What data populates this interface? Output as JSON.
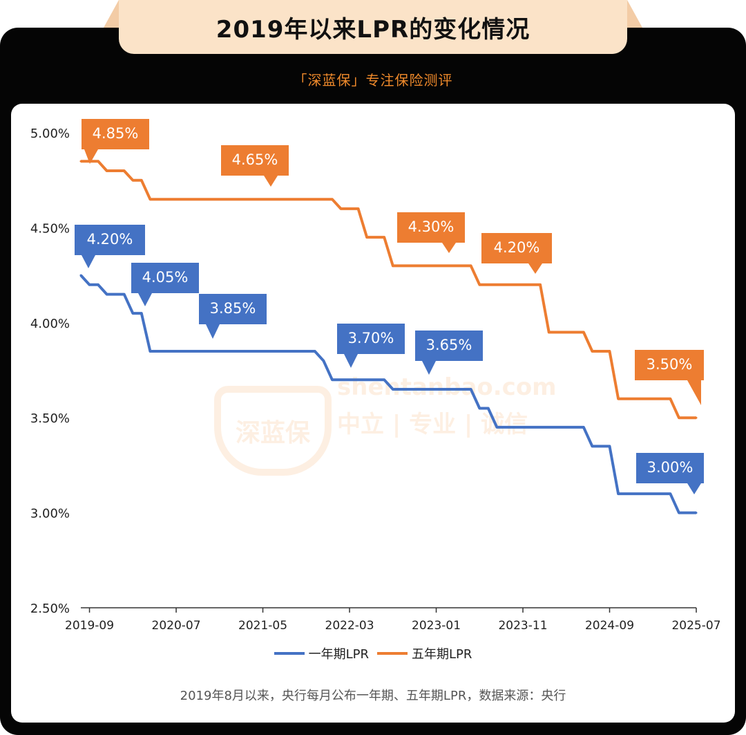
{
  "header": {
    "title": "2019年以来LPR的变化情况",
    "subtitle": "「深蓝保」专注保险测评"
  },
  "watermark": {
    "logo_text": "深蓝保",
    "url": "shentanbao.com",
    "slogan": "中立 | 专业 | 诚信"
  },
  "caption": "2019年8月以来，央行每月公布一年期、五年期LPR，数据来源：央行",
  "colors": {
    "one_year": "#4472c4",
    "five_year": "#ed7d31",
    "frame": "#050505",
    "title_bg": "#fbe3c8"
  },
  "chart_data": {
    "type": "line",
    "x_tick_labels": [
      "2019-09",
      "2020-07",
      "2021-05",
      "2022-03",
      "2023-01",
      "2023-11",
      "2024-09",
      "2025-07"
    ],
    "y_tick_labels": [
      "2.50%",
      "3.00%",
      "3.50%",
      "4.00%",
      "4.50%",
      "5.00%"
    ],
    "ylim": [
      2.5,
      5.0
    ],
    "x_range": [
      "2019-08",
      "2025-07"
    ],
    "grid": false,
    "legend_position": "bottom",
    "series": [
      {
        "name": "一年期LPR",
        "color": "#4472c4",
        "points": [
          [
            "2019-08",
            4.25
          ],
          [
            "2019-09",
            4.2
          ],
          [
            "2019-10",
            4.2
          ],
          [
            "2019-11",
            4.15
          ],
          [
            "2019-12",
            4.15
          ],
          [
            "2020-01",
            4.15
          ],
          [
            "2020-02",
            4.05
          ],
          [
            "2020-03",
            4.05
          ],
          [
            "2020-04",
            3.85
          ],
          [
            "2021-11",
            3.85
          ],
          [
            "2021-12",
            3.8
          ],
          [
            "2022-01",
            3.7
          ],
          [
            "2022-07",
            3.7
          ],
          [
            "2022-08",
            3.65
          ],
          [
            "2023-05",
            3.65
          ],
          [
            "2023-06",
            3.55
          ],
          [
            "2023-07",
            3.55
          ],
          [
            "2023-08",
            3.45
          ],
          [
            "2024-06",
            3.45
          ],
          [
            "2024-07",
            3.35
          ],
          [
            "2024-09",
            3.35
          ],
          [
            "2024-10",
            3.1
          ],
          [
            "2025-04",
            3.1
          ],
          [
            "2025-05",
            3.0
          ],
          [
            "2025-07",
            3.0
          ]
        ],
        "callouts": [
          "4.20%",
          "4.05%",
          "3.85%",
          "3.70%",
          "3.65%",
          "3.00%"
        ]
      },
      {
        "name": "五年期LPR",
        "color": "#ed7d31",
        "points": [
          [
            "2019-08",
            4.85
          ],
          [
            "2019-09",
            4.85
          ],
          [
            "2019-10",
            4.85
          ],
          [
            "2019-11",
            4.8
          ],
          [
            "2019-12",
            4.8
          ],
          [
            "2020-01",
            4.8
          ],
          [
            "2020-02",
            4.75
          ],
          [
            "2020-03",
            4.75
          ],
          [
            "2020-04",
            4.65
          ],
          [
            "2022-01",
            4.65
          ],
          [
            "2022-02",
            4.6
          ],
          [
            "2022-04",
            4.6
          ],
          [
            "2022-05",
            4.45
          ],
          [
            "2022-07",
            4.45
          ],
          [
            "2022-08",
            4.3
          ],
          [
            "2023-05",
            4.3
          ],
          [
            "2023-06",
            4.2
          ],
          [
            "2024-01",
            4.2
          ],
          [
            "2024-02",
            3.95
          ],
          [
            "2024-06",
            3.95
          ],
          [
            "2024-07",
            3.85
          ],
          [
            "2024-09",
            3.85
          ],
          [
            "2024-10",
            3.6
          ],
          [
            "2025-04",
            3.6
          ],
          [
            "2025-05",
            3.5
          ],
          [
            "2025-07",
            3.5
          ]
        ],
        "callouts": [
          "4.85%",
          "4.65%",
          "4.30%",
          "4.20%",
          "3.50%"
        ]
      }
    ]
  }
}
